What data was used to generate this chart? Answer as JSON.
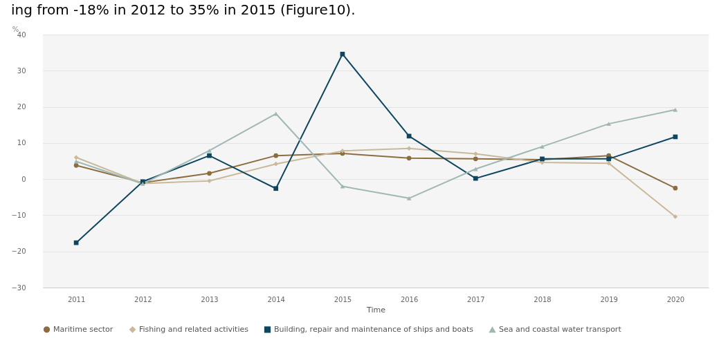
{
  "chart_data": {
    "type": "line",
    "annotations": [
      "ing from -18% in 2012 to 35% in 2015 (Figure10)."
    ],
    "xlabel": "Time",
    "ylabel": "%",
    "categories": [
      "2011",
      "2012",
      "2013",
      "2014",
      "2015",
      "2016",
      "2017",
      "2018",
      "2019",
      "2020"
    ],
    "series": [
      {
        "name": "Maritime sector",
        "color": "#8c6d3f",
        "marker": "circle",
        "values": [
          3.8,
          -1.0,
          1.6,
          6.5,
          7.1,
          5.8,
          5.6,
          5.4,
          6.5,
          -2.5
        ]
      },
      {
        "name": "Fishing and related activities",
        "color": "#c9b99a",
        "marker": "diamond",
        "values": [
          6.0,
          -1.2,
          -0.5,
          4.2,
          7.8,
          8.5,
          7.0,
          4.6,
          4.4,
          -10.4
        ]
      },
      {
        "name": "Building, repair and maintenance of ships and boats",
        "color": "#0e4660",
        "marker": "square",
        "values": [
          -17.6,
          -0.7,
          6.5,
          -2.6,
          34.6,
          11.9,
          0.2,
          5.6,
          5.6,
          11.7
        ]
      },
      {
        "name": "Sea and coastal water transport",
        "color": "#9fb8b3",
        "marker": "triangle",
        "values": [
          4.9,
          -1.3,
          7.9,
          18.1,
          -2.0,
          -5.3,
          2.8,
          9.0,
          15.3,
          19.2
        ]
      }
    ],
    "ylim": [
      -30,
      40
    ],
    "yticks": [
      -30,
      -20,
      -10,
      0,
      10,
      20,
      30,
      40
    ],
    "grid": "y",
    "legend": "bottom",
    "line_style": "solid"
  }
}
